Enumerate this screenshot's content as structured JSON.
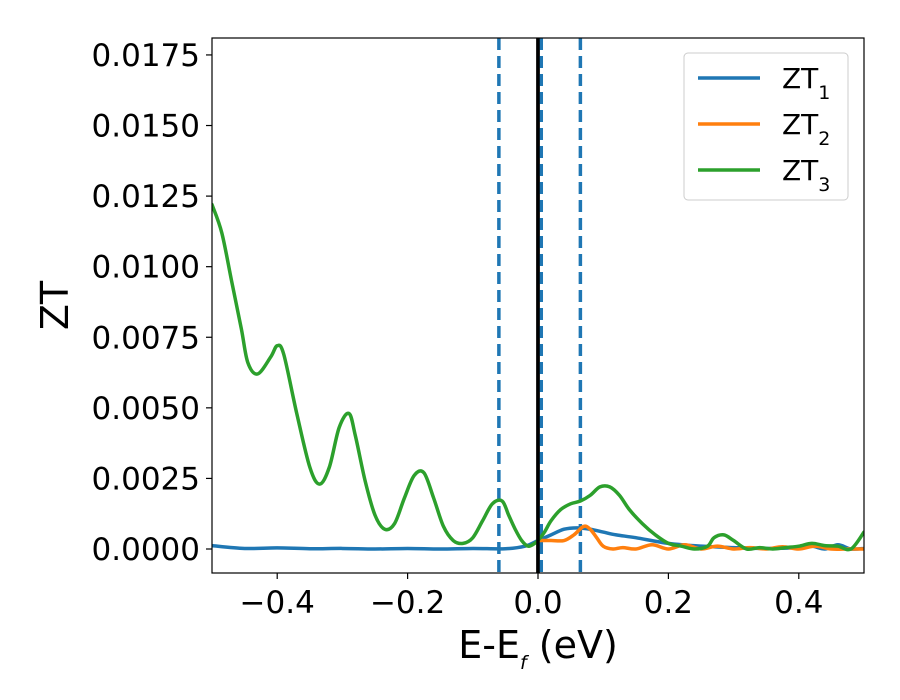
{
  "chart_data": {
    "type": "line",
    "title": "",
    "xlabel": "E-E",
    "xlabel_subscript": "f",
    "xlabel_unit": "(eV)",
    "ylabel": "ZT",
    "xlim": [
      -0.5,
      0.5
    ],
    "ylim": [
      -0.00085,
      0.0181
    ],
    "xticks": [
      -0.4,
      -0.2,
      0.0,
      0.2,
      0.4
    ],
    "xtick_labels": [
      "−0.4",
      "−0.2",
      "0.0",
      "0.2",
      "0.4"
    ],
    "yticks": [
      0.0,
      0.0025,
      0.005,
      0.0075,
      0.01,
      0.0125,
      0.015,
      0.0175
    ],
    "ytick_labels": [
      "0.0000",
      "0.0025",
      "0.0050",
      "0.0075",
      "0.0100",
      "0.0125",
      "0.0150",
      "0.0175"
    ],
    "grid": false,
    "legend_position": "top-right",
    "vertical_lines": [
      {
        "x": -0.06,
        "style": "dashed",
        "color": "#1f77b4"
      },
      {
        "x": 0.0,
        "style": "solid",
        "color": "#000000"
      },
      {
        "x": 0.005,
        "style": "dashed",
        "color": "#1f77b4"
      },
      {
        "x": 0.065,
        "style": "dashed",
        "color": "#1f77b4"
      }
    ],
    "series": [
      {
        "name": "ZT",
        "subscript": "1",
        "color": "#1f77b4",
        "x": [
          -0.5,
          -0.45,
          -0.4,
          -0.35,
          -0.3,
          -0.25,
          -0.2,
          -0.15,
          -0.1,
          -0.05,
          -0.02,
          0.0,
          0.02,
          0.04,
          0.06,
          0.08,
          0.1,
          0.12,
          0.15,
          0.2,
          0.25,
          0.3,
          0.35,
          0.4,
          0.42,
          0.44,
          0.46,
          0.48,
          0.5
        ],
        "y": [
          0.00012,
          2e-05,
          4e-05,
          1e-05,
          2e-05,
          0.0,
          2e-05,
          0.0,
          2e-05,
          1e-05,
          0.0001,
          0.0003,
          0.0005,
          0.0007,
          0.00075,
          0.0007,
          0.0006,
          0.0005,
          0.0004,
          0.0002,
          0.0001,
          5e-05,
          2e-05,
          5e-05,
          0.0001,
          0.0,
          0.00015,
          0.0,
          2e-05
        ]
      },
      {
        "name": "ZT",
        "subscript": "2",
        "color": "#ff7f0e",
        "x": [
          0.0,
          0.02,
          0.04,
          0.055,
          0.07,
          0.08,
          0.09,
          0.1,
          0.115,
          0.13,
          0.15,
          0.175,
          0.2,
          0.225,
          0.25,
          0.275,
          0.3,
          0.325,
          0.35,
          0.375,
          0.4,
          0.425,
          0.45,
          0.475,
          0.5
        ],
        "y": [
          0.0003,
          0.0003,
          0.0003,
          0.0005,
          0.0008,
          0.0007,
          0.0004,
          0.0001,
          0.0,
          5e-05,
          0.0,
          0.00015,
          0.0,
          0.00015,
          0.0,
          0.0001,
          0.0,
          5e-05,
          0.0,
          8e-05,
          0.0,
          0.0001,
          0.0,
          0.0,
          0.0
        ]
      },
      {
        "name": "ZT",
        "subscript": "3",
        "color": "#2ca02c",
        "x": [
          -0.5,
          -0.485,
          -0.47,
          -0.455,
          -0.445,
          -0.43,
          -0.41,
          -0.4,
          -0.39,
          -0.37,
          -0.35,
          -0.335,
          -0.32,
          -0.305,
          -0.29,
          -0.28,
          -0.265,
          -0.25,
          -0.235,
          -0.22,
          -0.205,
          -0.19,
          -0.175,
          -0.16,
          -0.145,
          -0.13,
          -0.115,
          -0.1,
          -0.085,
          -0.07,
          -0.055,
          -0.045,
          -0.035,
          -0.025,
          -0.015,
          -0.005,
          0.0,
          0.01,
          0.02,
          0.035,
          0.05,
          0.065,
          0.08,
          0.095,
          0.11,
          0.125,
          0.14,
          0.16,
          0.18,
          0.2,
          0.22,
          0.24,
          0.26,
          0.27,
          0.285,
          0.3,
          0.32,
          0.34,
          0.36,
          0.38,
          0.4,
          0.42,
          0.44,
          0.46,
          0.48,
          0.5
        ],
        "y": [
          0.0122,
          0.0112,
          0.0095,
          0.0078,
          0.0066,
          0.0062,
          0.0068,
          0.0072,
          0.0069,
          0.0048,
          0.0029,
          0.0023,
          0.0029,
          0.0043,
          0.0048,
          0.004,
          0.0024,
          0.0012,
          0.0007,
          0.0009,
          0.0018,
          0.0026,
          0.0027,
          0.0018,
          0.0008,
          0.0003,
          0.0002,
          0.0004,
          0.001,
          0.0016,
          0.0017,
          0.0012,
          0.0007,
          0.0003,
          0.0001,
          0.0002,
          0.0003,
          0.0006,
          0.001,
          0.0014,
          0.0016,
          0.0017,
          0.0019,
          0.0022,
          0.0022,
          0.0019,
          0.0014,
          0.0009,
          0.0005,
          0.0002,
          0.0001,
          0.0,
          0.0001,
          0.0004,
          0.0005,
          0.0003,
          0.0,
          5e-05,
          0.0,
          5e-05,
          0.0001,
          0.0002,
          0.00012,
          0.0001,
          0.0,
          0.0006
        ]
      }
    ]
  }
}
